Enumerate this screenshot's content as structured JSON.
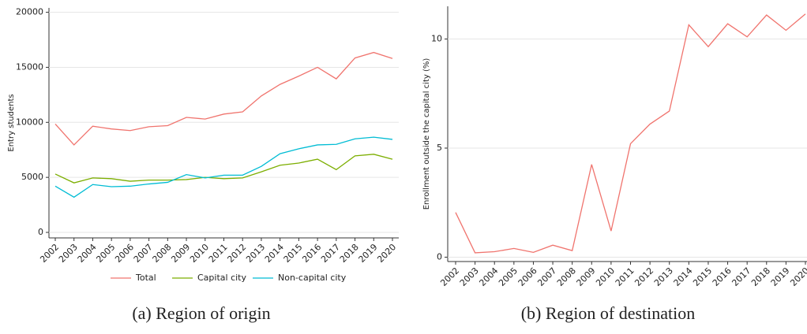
{
  "chart_data": [
    {
      "type": "line",
      "caption": "(a) Region of origin",
      "y_label": "Entry students",
      "categories": [
        "2002",
        "2003",
        "2004",
        "2005",
        "2006",
        "2007",
        "2008",
        "2009",
        "2010",
        "2011",
        "2012",
        "2013",
        "2014",
        "2015",
        "2016",
        "2017",
        "2018",
        "2019",
        "2020"
      ],
      "ylim": [
        -500,
        20400
      ],
      "yticks": [
        0,
        5000,
        10000,
        15000,
        20000
      ],
      "grid": true,
      "legend": "bottom",
      "series": [
        {
          "name": "Total",
          "color": "#f0746e",
          "values": [
            9850,
            7950,
            9650,
            9400,
            9250,
            9600,
            9700,
            10450,
            10300,
            10750,
            10950,
            12400,
            13450,
            14200,
            15000,
            13950,
            15850,
            16350,
            15800
          ]
        },
        {
          "name": "Capital city",
          "color": "#7cae00",
          "values": [
            5300,
            4500,
            4950,
            4880,
            4650,
            4750,
            4750,
            4800,
            5000,
            4880,
            4950,
            5500,
            6100,
            6300,
            6650,
            5700,
            6950,
            7100,
            6650
          ]
        },
        {
          "name": "Non-capital city",
          "color": "#00bcd4",
          "values": [
            4200,
            3200,
            4350,
            4150,
            4200,
            4400,
            4550,
            5250,
            4950,
            5200,
            5200,
            6000,
            7150,
            7600,
            7950,
            8000,
            8500,
            8650,
            8450
          ]
        }
      ]
    },
    {
      "type": "line",
      "caption": "(b) Region of destination",
      "y_label": "Enrollment outside the capital city (%)",
      "categories": [
        "2002",
        "2003",
        "2004",
        "2005",
        "2006",
        "2007",
        "2008",
        "2009",
        "2010",
        "2011",
        "2012",
        "2013",
        "2014",
        "2015",
        "2016",
        "2017",
        "2018",
        "2019",
        "2020"
      ],
      "ylim": [
        -0.2,
        11.5
      ],
      "yticks": [
        0,
        5,
        10
      ],
      "grid": true,
      "series": [
        {
          "color": "#f0746e",
          "values": [
            2.05,
            0.2,
            0.25,
            0.4,
            0.22,
            0.55,
            0.3,
            4.25,
            1.2,
            5.2,
            6.1,
            6.7,
            10.65,
            9.65,
            10.7,
            10.1,
            11.1,
            10.4,
            11.15
          ]
        }
      ]
    }
  ]
}
